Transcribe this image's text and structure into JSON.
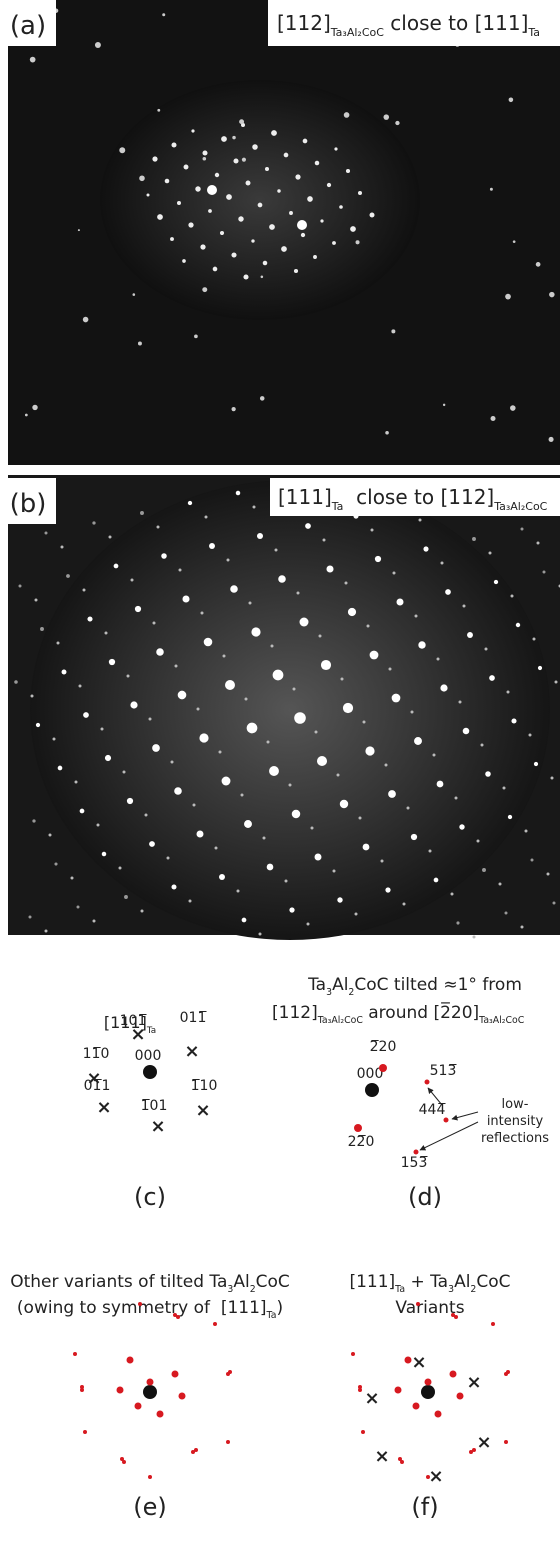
{
  "panels": [
    {
      "label": "(a)",
      "caption": [
        {
          "text": "[112]"
        },
        {
          "sub": "Ta₃Al₂CoC"
        },
        {
          "text": " close to "
        },
        {
          "text": "[111]"
        },
        {
          "sub": "Ta"
        }
      ]
    },
    {
      "label": "(b)",
      "caption": [
        {
          "text": "[111]"
        },
        {
          "sub": "Ta"
        },
        {
          "text": "  close to "
        },
        {
          "text": "[112]"
        },
        {
          "sub": "Ta₃Al₂CoC"
        }
      ]
    },
    {
      "label": "(c)",
      "title": [
        [
          {
            "text": "[111]"
          },
          {
            "sub": "Ta"
          }
        ]
      ],
      "origin": "000",
      "reflections": [
        "101̅",
        "011̅",
        "11̅0",
        "01̅1",
        "1̅10",
        "1̅01"
      ]
    },
    {
      "label": "(d)",
      "title": [
        [
          {
            "text": "Ta"
          },
          {
            "sub": "3"
          },
          {
            "text": "Al"
          },
          {
            "sub": "2"
          },
          {
            "text": "CoC tilted ≈1° from"
          }
        ],
        [
          {
            "text": "[112]"
          },
          {
            "sub": "Ta₃Al₂CoC"
          },
          {
            "text": " around [2̅20]"
          },
          {
            "sub": "Ta₃Al₂CoC"
          }
        ]
      ],
      "origin": "000",
      "reflections": [
        "2̅20",
        "22̅0",
        "513̅",
        "444̅",
        "153̅"
      ],
      "annotation": [
        "low-",
        "intensity",
        "reflections"
      ]
    },
    {
      "label": "(e)",
      "title": [
        [
          {
            "text": "Other variants of tilted Ta"
          },
          {
            "sub": "3"
          },
          {
            "text": "Al"
          },
          {
            "sub": "2"
          },
          {
            "text": "CoC"
          }
        ],
        [
          {
            "text": "(owing to symmetry of  [111]"
          },
          {
            "sub": "Ta"
          },
          {
            "text": ")"
          }
        ]
      ]
    },
    {
      "label": "(f)",
      "title": [
        [
          {
            "text": "[111]"
          },
          {
            "sub": "Ta"
          },
          {
            "text": " + Ta"
          },
          {
            "sub": "3"
          },
          {
            "text": "Al"
          },
          {
            "sub": "2"
          },
          {
            "text": "CoC"
          }
        ],
        [
          {
            "text": "Variants"
          }
        ]
      ]
    }
  ]
}
